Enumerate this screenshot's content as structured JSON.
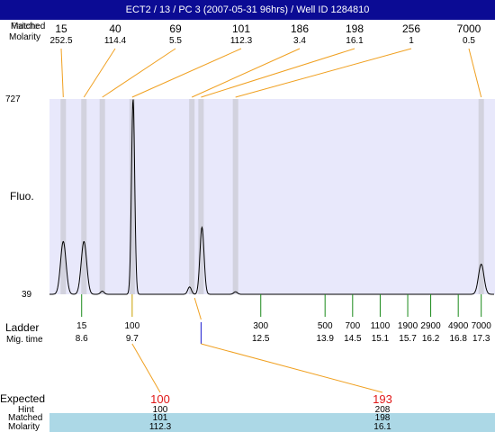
{
  "title": "ECT2 / 13 / PC 3 (2007-05-31 96hrs) / Well ID 1284810",
  "header": {
    "row_label_1": "Matched",
    "row_label_2": "Molarity",
    "overlap_text": "Palette"
  },
  "labels": {
    "fluo": "Fluo.",
    "ladder": "Ladder",
    "mig_time": "Mig. time",
    "expected": "Expected",
    "hint": "Hint",
    "matched": "Matched",
    "molarity": "Molarity"
  },
  "colors": {
    "title_bg": "#0b0b94",
    "plot_bg": "#e8e8fb",
    "band": "#d2d2de",
    "leader": "#f0a020",
    "ladder_tick": "#1a8a1a",
    "sample_tick": "#1a1ad0",
    "table_band": "#acd8e6",
    "expected": "#e01818"
  },
  "chart_data": {
    "type": "line",
    "title": "ECT2 / 13 / PC 3 (2007-05-31 96hrs) / Well ID 1284810",
    "ylabel": "Fluo.",
    "ylim": [
      39,
      727
    ],
    "y_ticks": [
      39,
      727
    ],
    "x_axis": "migration time",
    "xlim": [
      7.9,
      17.6
    ],
    "ladder": [
      {
        "size": "15",
        "time": "8.6",
        "t": 8.6
      },
      {
        "size": "100",
        "time": "9.7",
        "t": 9.7
      },
      {
        "size": "300",
        "time": "12.5",
        "t": 12.5
      },
      {
        "size": "500",
        "time": "13.9",
        "t": 13.9
      },
      {
        "size": "700",
        "time": "14.5",
        "t": 14.5
      },
      {
        "size": "1100",
        "time": "15.1",
        "t": 15.1
      },
      {
        "size": "1900",
        "time": "15.7",
        "t": 15.7
      },
      {
        "size": "2900",
        "time": "16.2",
        "t": 16.2
      },
      {
        "size": "4900",
        "time": "16.8",
        "t": 16.8
      },
      {
        "size": "7000",
        "time": "17.3",
        "t": 17.3
      }
    ],
    "matched_peaks": [
      {
        "size": "15",
        "molarity": "252.5",
        "t": 8.2
      },
      {
        "size": "40",
        "molarity": "114.4",
        "t": 8.65
      },
      {
        "size": "69",
        "molarity": "5.5",
        "t": 9.05
      },
      {
        "size": "101",
        "molarity": "112.3",
        "t": 9.7
      },
      {
        "size": "186",
        "molarity": "3.4",
        "t": 11.0
      },
      {
        "size": "198",
        "molarity": "16.1",
        "t": 11.2
      },
      {
        "size": "256",
        "molarity": "1",
        "t": 11.95
      },
      {
        "size": "7000",
        "molarity": "0.5",
        "t": 17.3
      }
    ],
    "trace": {
      "baseline": 39,
      "peaks": [
        {
          "t": 8.2,
          "h": 225,
          "w": 0.06
        },
        {
          "t": 8.65,
          "h": 225,
          "w": 0.06
        },
        {
          "t": 9.05,
          "h": 50,
          "w": 0.04
        },
        {
          "t": 9.72,
          "h": 727,
          "w": 0.035
        },
        {
          "t": 10.95,
          "h": 65,
          "w": 0.04
        },
        {
          "t": 11.22,
          "h": 275,
          "w": 0.045
        },
        {
          "t": 11.95,
          "h": 48,
          "w": 0.04
        },
        {
          "t": 17.3,
          "h": 145,
          "w": 0.06
        }
      ]
    },
    "table": {
      "columns": [
        {
          "expected": "100",
          "hint": "100",
          "matched": "101",
          "molarity": "112.3",
          "t": 9.7
        },
        {
          "expected": "193",
          "hint": "208",
          "matched": "198",
          "molarity": "16.1",
          "t": 11.2
        }
      ]
    },
    "grid": false
  }
}
